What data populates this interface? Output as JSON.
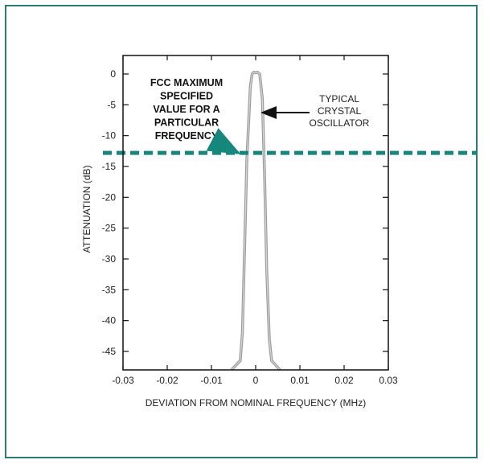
{
  "colors": {
    "frame": "#2a7a78",
    "limit_line": "#16877c",
    "arrow_teal": "#16877c",
    "trace": "#9a9a9a"
  },
  "chart_data": {
    "type": "line",
    "xlabel": "DEVIATION FROM NOMINAL FREQUENCY (MHz)",
    "ylabel": "ATTENUATION (dB)",
    "xlim": [
      -0.03,
      0.03
    ],
    "ylim": [
      -48,
      3
    ],
    "x_ticks": [
      -0.03,
      -0.02,
      -0.01,
      0,
      0.01,
      0.02,
      0.03
    ],
    "x_tick_labels": [
      "-0.03",
      "-0.02",
      "-0.01",
      "0",
      "0.01",
      "0.02",
      "0.03"
    ],
    "y_ticks": [
      0,
      -5,
      -10,
      -15,
      -20,
      -25,
      -30,
      -35,
      -40,
      -45
    ],
    "y_tick_labels": [
      "0",
      "-5",
      "-10",
      "-15",
      "-20",
      "-25",
      "-30",
      "-35",
      "-40",
      "-45"
    ],
    "grid": false,
    "series": [
      {
        "name": "TYPICAL CRYSTAL OSCILLATOR",
        "x": [
          -0.0055,
          -0.0035,
          -0.003,
          -0.0025,
          -0.002,
          -0.0012,
          -0.0008,
          -0.0004,
          0,
          0.0004,
          0.0009,
          0.0015,
          0.002,
          0.0025,
          0.0031,
          0.0036,
          0.0055
        ],
        "y": [
          -48,
          -46.5,
          -42,
          -28,
          -14,
          -2,
          0,
          0.3,
          0.2,
          0.3,
          0,
          -4,
          -16,
          -32,
          -43,
          -46.5,
          -48
        ]
      }
    ],
    "limit": {
      "value": -12.8
    },
    "annotations": [
      {
        "lines": [
          "FCC MAXIMUM",
          "SPECIFIED",
          "VALUE FOR A",
          "PARTICULAR",
          "FREQUENCY"
        ]
      },
      {
        "lines": [
          "TYPICAL",
          "CRYSTAL",
          "OSCILLATOR"
        ]
      }
    ]
  }
}
